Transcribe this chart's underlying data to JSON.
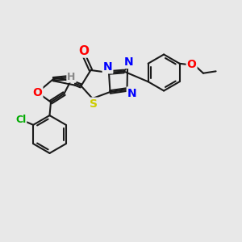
{
  "background_color": "#e8e8e8",
  "atom_colors": {
    "O": "#ff0000",
    "N": "#0000ff",
    "S": "#cccc00",
    "Cl": "#00aa00",
    "C": "#000000",
    "H": "#888888"
  },
  "bond_color": "#1a1a1a",
  "bond_width": 1.5,
  "font_size_atoms": 10,
  "bg": "#e8e8e8"
}
